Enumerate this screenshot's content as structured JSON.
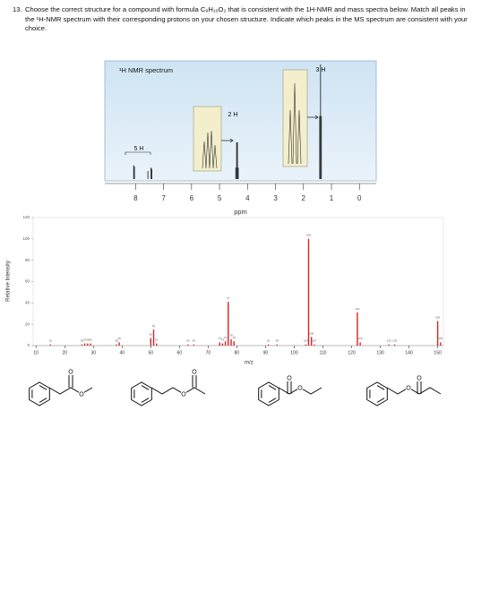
{
  "question": {
    "number": "13.",
    "text": "Choose the correct structure for a compound with formula C₉H₁₀O₂ that is consistent with the 1H-NMR and mass spectra below. Match all peaks in the ¹H-NMR spectrum with their corresponding protons on your chosen structure. Indicate which peaks in the MS spectrum are consistent with your choice."
  },
  "chart_data": [
    {
      "type": "stem",
      "title": "¹H NMR spectrum",
      "x_label": "ppm",
      "color": "#111111",
      "xlim": [
        9.1,
        -0.6
      ],
      "xticks": [
        8,
        7,
        6,
        5,
        4,
        3,
        2,
        1,
        0
      ],
      "x": [
        8.07,
        8.04,
        7.56,
        7.45,
        7.42,
        4.42,
        4.39,
        4.36,
        4.33,
        1.42,
        1.39,
        1.36
      ],
      "values": [
        12,
        11,
        7,
        10,
        9,
        10,
        32,
        32,
        10,
        55,
        100,
        55
      ],
      "ylim": [
        0,
        100
      ],
      "integrations": [
        "5 H",
        "2 H",
        "3 H"
      ]
    },
    {
      "type": "stem",
      "x_label": "m/z",
      "y_label": "Relative Intensity",
      "color": "#d9231f",
      "xlim": [
        9,
        152
      ],
      "xticks": [
        10,
        20,
        30,
        40,
        50,
        60,
        70,
        80,
        90,
        100,
        110,
        120,
        130,
        140,
        150
      ],
      "ylim": [
        0,
        120
      ],
      "yticks": [
        0,
        20,
        40,
        60,
        80,
        100,
        120
      ],
      "x": [
        15,
        26,
        27,
        28,
        29,
        38,
        39,
        50,
        51,
        52,
        63,
        65,
        74,
        75,
        76,
        77,
        78,
        79,
        91,
        94,
        104,
        105,
        106,
        107,
        122,
        123,
        133,
        135,
        150,
        151
      ],
      "values": [
        1,
        1,
        2,
        2,
        2,
        1,
        3,
        7,
        15,
        2,
        1,
        1,
        3,
        2,
        4,
        41,
        6,
        4,
        1,
        1,
        1,
        100,
        8,
        1,
        31,
        3,
        1,
        1,
        23,
        3
      ]
    }
  ]
}
